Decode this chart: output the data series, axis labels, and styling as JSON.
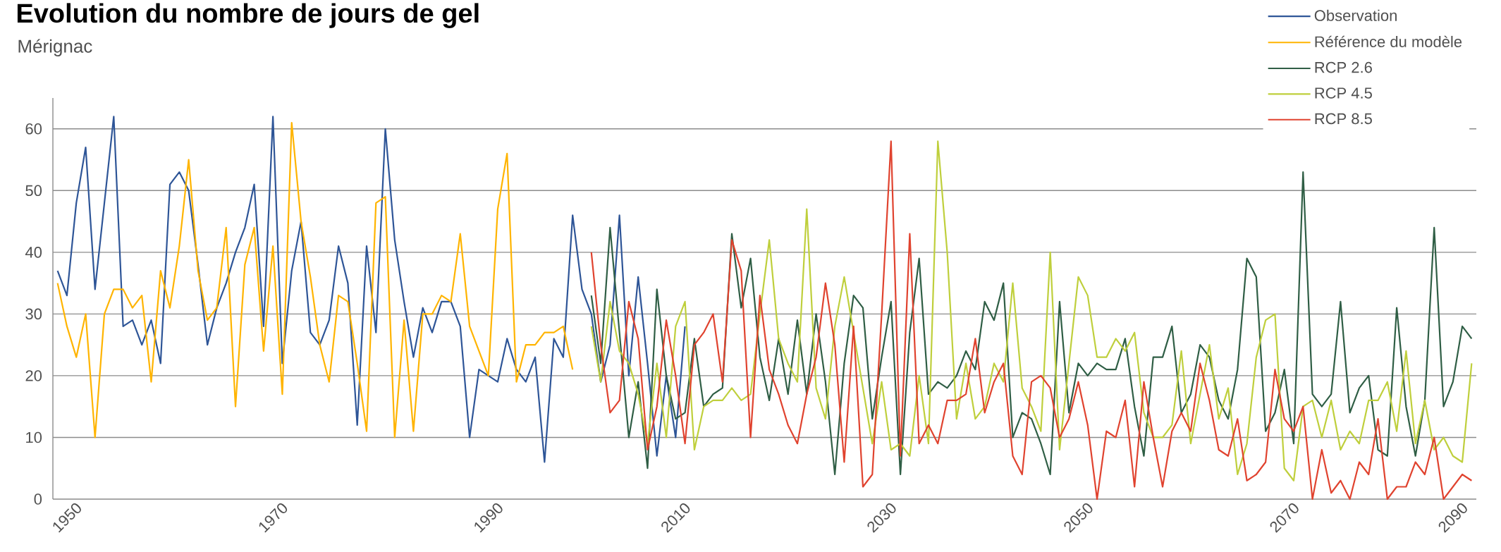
{
  "chart_data": {
    "type": "line",
    "title": "Evolution du nombre de jours de gel",
    "subtitle": "Mérignac",
    "categories": [
      null,
      "1950",
      null,
      null,
      null,
      null,
      null,
      null,
      null,
      null,
      null,
      null,
      null,
      null,
      null,
      null,
      null,
      null,
      null,
      null,
      null,
      null,
      null,
      "1970",
      null,
      null,
      null,
      null,
      null,
      null,
      null,
      null,
      null,
      null,
      null,
      null,
      null,
      null,
      null,
      null,
      null,
      null,
      null,
      null,
      null,
      null,
      "1990",
      null,
      null,
      null,
      null,
      null,
      null,
      null,
      null,
      null,
      null,
      null,
      null,
      null,
      null,
      null,
      null,
      null,
      null,
      null,
      "2010",
      null,
      null,
      null,
      null,
      null,
      null,
      null,
      null,
      null,
      null,
      null,
      null,
      null,
      null,
      null,
      null,
      null,
      null,
      null,
      null,
      null,
      "2030",
      null,
      null,
      null,
      null,
      null,
      null,
      null,
      null,
      null,
      null,
      null,
      null,
      null,
      null,
      null,
      null,
      null,
      null,
      null,
      null,
      "2050",
      null,
      null,
      null,
      null,
      null,
      null,
      null,
      null,
      null,
      null,
      null,
      null,
      null,
      null,
      null,
      null,
      null,
      null,
      null,
      null,
      null,
      "2070",
      null,
      null,
      null,
      null,
      null,
      null,
      null,
      null,
      null,
      null,
      null,
      null,
      null,
      null,
      null,
      null,
      null,
      "2090",
      null,
      null
    ],
    "series": [
      {
        "name": "Observation",
        "color": "#2e5597",
        "values": [
          37,
          33,
          48,
          57,
          34,
          48,
          62,
          28,
          29,
          25,
          29,
          22,
          51,
          53,
          50,
          38,
          25,
          31,
          35,
          40,
          44,
          51,
          28,
          62,
          22,
          37,
          45,
          27,
          25,
          29,
          41,
          35,
          12,
          41,
          27,
          60,
          42,
          32,
          23,
          31,
          27,
          32,
          32,
          28,
          10,
          21,
          20,
          19,
          26,
          21,
          19,
          23,
          6,
          26,
          23,
          46,
          34,
          30,
          19,
          25,
          46,
          20,
          36,
          22,
          7,
          20,
          10,
          28,
          null,
          null,
          null,
          null,
          null,
          null,
          null,
          null,
          null,
          null,
          null,
          null,
          null,
          null,
          null,
          null,
          null,
          null,
          null,
          null,
          null,
          null,
          null,
          null,
          null,
          null,
          null,
          null,
          null,
          null,
          null,
          null,
          null,
          null,
          null,
          null,
          null,
          null,
          null,
          null,
          null,
          null,
          null,
          null,
          null,
          null,
          null,
          null,
          null,
          null,
          null,
          null,
          null,
          null,
          null,
          null,
          null,
          null,
          null,
          null,
          null,
          null,
          null,
          null,
          null,
          null,
          null,
          null,
          null,
          null,
          null,
          null,
          null,
          null,
          null,
          null,
          null,
          null,
          null,
          null,
          null,
          null,
          null,
          null
        ]
      },
      {
        "name": "Référence du modèle",
        "color": "#ffb400",
        "values": [
          35,
          28,
          23,
          30,
          10,
          30,
          34,
          34,
          31,
          33,
          19,
          37,
          31,
          41,
          55,
          37,
          29,
          31,
          44,
          15,
          38,
          44,
          24,
          41,
          17,
          61,
          45,
          36,
          25,
          19,
          33,
          32,
          22,
          11,
          48,
          49,
          10,
          29,
          11,
          30,
          30,
          33,
          32,
          43,
          28,
          24,
          20,
          47,
          56,
          19,
          25,
          25,
          27,
          27,
          28,
          21,
          null,
          null,
          null,
          null,
          null,
          null,
          null,
          null,
          null,
          null,
          null,
          null,
          null,
          null,
          null,
          null,
          null,
          null,
          null,
          null,
          null,
          null,
          null,
          null,
          null,
          null,
          null,
          null,
          null,
          null,
          null,
          null,
          null,
          null,
          null,
          null,
          null,
          null,
          null,
          null,
          null,
          null,
          null,
          null,
          null,
          null,
          null,
          null,
          null,
          null,
          null,
          null,
          null,
          null,
          null,
          null,
          null,
          null,
          null,
          null,
          null,
          null,
          null,
          null,
          null,
          null,
          null,
          null,
          null,
          null,
          null,
          null,
          null,
          null,
          null,
          null,
          null,
          null,
          null,
          null,
          null,
          null,
          null,
          null,
          null,
          null,
          null,
          null,
          null,
          null,
          null,
          null,
          null,
          null,
          null,
          null
        ]
      },
      {
        "name": "RCP 2.6",
        "color": "#2f5e45",
        "values": [
          null,
          null,
          null,
          null,
          null,
          null,
          null,
          null,
          null,
          null,
          null,
          null,
          null,
          null,
          null,
          null,
          null,
          null,
          null,
          null,
          null,
          null,
          null,
          null,
          null,
          null,
          null,
          null,
          null,
          null,
          null,
          null,
          null,
          null,
          null,
          null,
          null,
          null,
          null,
          null,
          null,
          null,
          null,
          null,
          null,
          null,
          null,
          null,
          null,
          null,
          null,
          null,
          null,
          null,
          null,
          null,
          null,
          33,
          22,
          44,
          27,
          10,
          19,
          5,
          34,
          20,
          13,
          14,
          26,
          15,
          17,
          18,
          43,
          31,
          39,
          23,
          16,
          26,
          17,
          29,
          17,
          30,
          19,
          4,
          22,
          33,
          31,
          13,
          23,
          32,
          4,
          27,
          39,
          17,
          19,
          18,
          20,
          24,
          21,
          32,
          29,
          35,
          10,
          14,
          13,
          9,
          4,
          32,
          14,
          22,
          20,
          22,
          21,
          21,
          26,
          15,
          7,
          23,
          23,
          28,
          14,
          17,
          25,
          23,
          16,
          13,
          21,
          39,
          36,
          11,
          14,
          21,
          9,
          53,
          17,
          15,
          17,
          32,
          14,
          18,
          20,
          8,
          7,
          31,
          15,
          7,
          16,
          44,
          15,
          19,
          28,
          26
        ]
      },
      {
        "name": "RCP 4.5",
        "color": "#bfcf3c",
        "values": [
          null,
          null,
          null,
          null,
          null,
          null,
          null,
          null,
          null,
          null,
          null,
          null,
          null,
          null,
          null,
          null,
          null,
          null,
          null,
          null,
          null,
          null,
          null,
          null,
          null,
          null,
          null,
          null,
          null,
          null,
          null,
          null,
          null,
          null,
          null,
          null,
          null,
          null,
          null,
          null,
          null,
          null,
          null,
          null,
          null,
          null,
          null,
          null,
          null,
          null,
          null,
          null,
          null,
          null,
          null,
          null,
          null,
          28,
          19,
          32,
          24,
          22,
          17,
          9,
          22,
          10,
          28,
          32,
          8,
          15,
          16,
          16,
          18,
          16,
          17,
          30,
          42,
          26,
          22,
          19,
          47,
          18,
          13,
          28,
          36,
          27,
          18,
          9,
          19,
          8,
          9,
          7,
          20,
          9,
          58,
          40,
          13,
          22,
          13,
          15,
          22,
          19,
          35,
          18,
          15,
          11,
          40,
          8,
          22,
          36,
          33,
          23,
          23,
          26,
          24,
          27,
          14,
          10,
          10,
          12,
          24,
          9,
          17,
          25,
          13,
          18,
          4,
          9,
          23,
          29,
          30,
          5,
          3,
          15,
          16,
          10,
          16,
          8,
          11,
          9,
          16,
          16,
          19,
          11,
          24,
          9,
          16,
          8,
          10,
          7,
          6,
          22
        ]
      },
      {
        "name": "RCP 8.5",
        "color": "#e0432f",
        "values": [
          null,
          null,
          null,
          null,
          null,
          null,
          null,
          null,
          null,
          null,
          null,
          null,
          null,
          null,
          null,
          null,
          null,
          null,
          null,
          null,
          null,
          null,
          null,
          null,
          null,
          null,
          null,
          null,
          null,
          null,
          null,
          null,
          null,
          null,
          null,
          null,
          null,
          null,
          null,
          null,
          null,
          null,
          null,
          null,
          null,
          null,
          null,
          null,
          null,
          null,
          null,
          null,
          null,
          null,
          null,
          null,
          null,
          40,
          25,
          14,
          16,
          32,
          26,
          8,
          15,
          29,
          20,
          9,
          25,
          27,
          30,
          19,
          42,
          37,
          10,
          33,
          21,
          17,
          12,
          9,
          17,
          23,
          35,
          25,
          6,
          28,
          2,
          4,
          30,
          58,
          7,
          43,
          9,
          12,
          9,
          16,
          16,
          17,
          26,
          14,
          19,
          22,
          7,
          4,
          19,
          20,
          18,
          10,
          13,
          19,
          12,
          0,
          11,
          10,
          16,
          2,
          19,
          10,
          2,
          11,
          14,
          11,
          22,
          16,
          8,
          7,
          13,
          3,
          4,
          6,
          21,
          13,
          11,
          15,
          0,
          8,
          1,
          3,
          0,
          6,
          4,
          13,
          0,
          2,
          2,
          6,
          4,
          10,
          0,
          2,
          4,
          3
        ]
      }
    ],
    "ylim": [
      0,
      65
    ],
    "yticks": [
      0,
      10,
      20,
      30,
      40,
      50,
      60
    ],
    "grid": "y",
    "legend": "top right"
  }
}
